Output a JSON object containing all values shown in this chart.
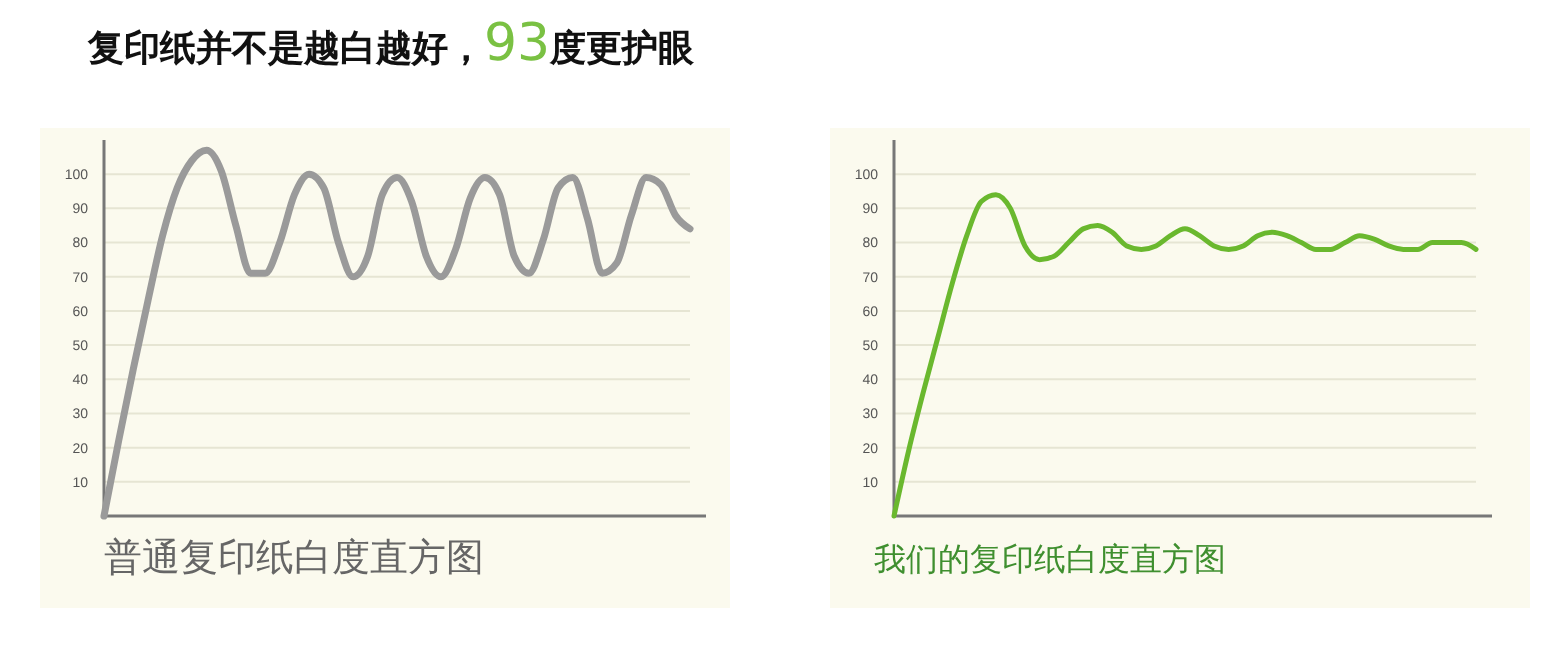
{
  "chart_data": [
    {
      "type": "line",
      "title": "复印纸并不是越白越好，93度更护眼",
      "xlabel": "普通复印纸白度直方图",
      "categories": [
        null,
        null,
        null,
        null,
        null,
        null,
        null,
        null,
        null,
        null,
        null,
        null,
        null,
        null,
        null,
        null,
        null,
        null,
        null,
        null,
        null,
        null,
        null,
        null,
        null,
        null,
        null,
        null,
        null,
        null,
        null,
        null,
        null,
        null,
        null,
        null,
        null,
        null,
        null,
        null,
        null
      ],
      "series": [
        {
          "color": "#9a9a9a",
          "values": [
            0,
            22,
            43,
            63,
            82,
            96,
            104,
            107,
            101,
            85,
            71,
            71,
            80,
            94,
            100,
            96,
            80,
            70,
            76,
            94,
            99,
            92,
            76,
            70,
            78,
            93,
            99,
            94,
            76,
            71,
            81,
            96,
            99,
            87,
            71,
            74,
            88,
            99,
            97,
            88,
            84
          ]
        }
      ],
      "ylim": [
        0,
        110
      ],
      "yticks": [
        10,
        20,
        30,
        40,
        50,
        60,
        70,
        80,
        90,
        100
      ],
      "grid": "y"
    },
    {
      "type": "line",
      "xlabel": "我们的复印纸白度直方图",
      "categories": [
        null,
        null,
        null,
        null,
        null,
        null,
        null,
        null,
        null,
        null,
        null,
        null,
        null,
        null,
        null,
        null,
        null,
        null,
        null,
        null,
        null,
        null,
        null,
        null,
        null,
        null,
        null,
        null,
        null,
        null,
        null,
        null,
        null,
        null,
        null,
        null,
        null,
        null,
        null,
        null,
        null
      ],
      "series": [
        {
          "color": "#6ab82e",
          "values": [
            0,
            19,
            36,
            52,
            68,
            82,
            92,
            94,
            90,
            79,
            75,
            76,
            80,
            84,
            85,
            83,
            79,
            78,
            79,
            82,
            84,
            82,
            79,
            78,
            79,
            82,
            83,
            82,
            80,
            78,
            78,
            80,
            82,
            81,
            79,
            78,
            78,
            80,
            80,
            80,
            78
          ]
        }
      ],
      "ylim": [
        0,
        110
      ],
      "yticks": [
        10,
        20,
        30,
        40,
        50,
        60,
        70,
        80,
        90,
        100
      ],
      "grid": "y"
    }
  ]
}
